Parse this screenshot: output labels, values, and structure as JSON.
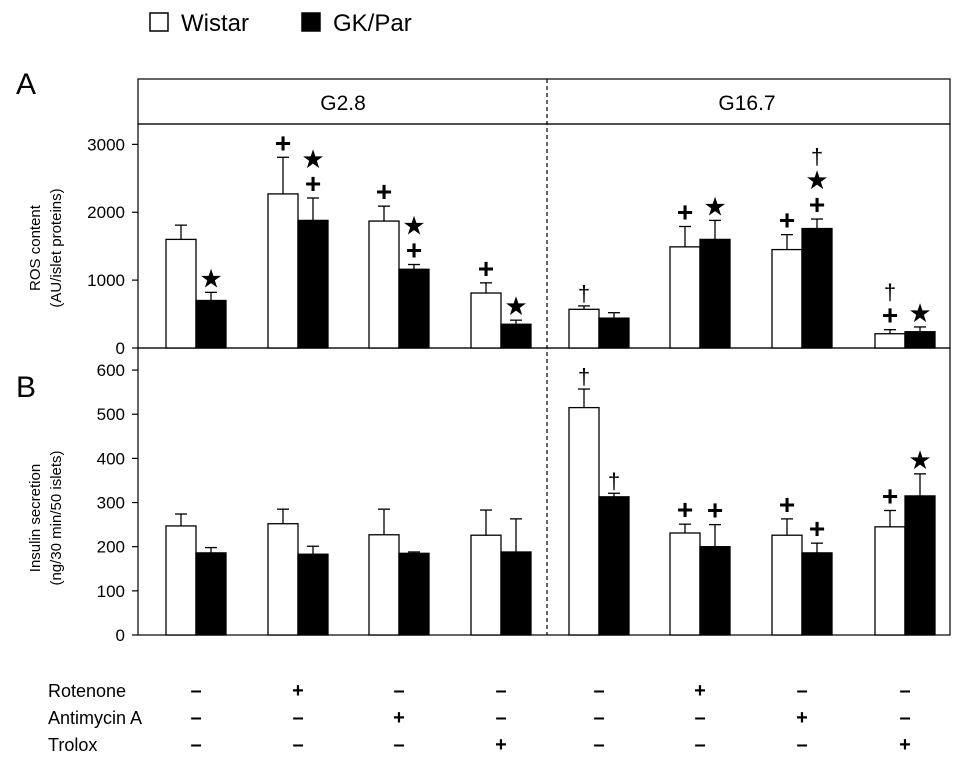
{
  "legend": [
    {
      "label": "Wistar",
      "fill": "#ffffff"
    },
    {
      "label": "GK/Par",
      "fill": "#000000"
    }
  ],
  "panel_letters": {
    "a": "A",
    "b": "B"
  },
  "condition_headers": [
    "G2.8",
    "G16.7"
  ],
  "treatments": [
    {
      "name": "Rotenone",
      "marks": [
        "–",
        "+",
        "–",
        "–",
        "–",
        "+",
        "–",
        "–"
      ]
    },
    {
      "name": "Antimycin A",
      "marks": [
        "–",
        "–",
        "+",
        "–",
        "–",
        "–",
        "+",
        "–"
      ]
    },
    {
      "name": "Trolox",
      "marks": [
        "–",
        "–",
        "–",
        "+",
        "–",
        "–",
        "–",
        "+"
      ]
    }
  ],
  "chart_data": [
    {
      "type": "bar",
      "panel": "A",
      "ylabel_lines": [
        "ROS content",
        "(AU/islet proteins)"
      ],
      "ylim": [
        0,
        3300
      ],
      "yticks": [
        0,
        1000,
        2000,
        3000
      ],
      "groups": 8,
      "series": [
        {
          "name": "Wistar",
          "values": [
            1600,
            2270,
            1870,
            810,
            570,
            1490,
            1450,
            210
          ],
          "errors": [
            210,
            540,
            220,
            150,
            50,
            300,
            220,
            60
          ]
        },
        {
          "name": "GK/Par",
          "values": [
            700,
            1880,
            1160,
            350,
            440,
            1600,
            1760,
            240
          ],
          "errors": [
            120,
            330,
            70,
            60,
            80,
            280,
            140,
            70
          ]
        }
      ],
      "annotations": {
        "Wistar": [
          [],
          [
            "+"
          ],
          [
            "+"
          ],
          [
            "+"
          ],
          [
            "†"
          ],
          [
            "+"
          ],
          [
            "+"
          ],
          [
            "+",
            "†"
          ]
        ],
        "GK/Par": [
          [
            "★"
          ],
          [
            "+",
            "★"
          ],
          [
            "+",
            "★"
          ],
          [
            "★"
          ],
          [],
          [
            "★"
          ],
          [
            "+",
            "★",
            "†"
          ],
          [
            "★"
          ]
        ]
      }
    },
    {
      "type": "bar",
      "panel": "B",
      "ylabel_lines": [
        "Insulin secretion",
        "(ng/30 min/50 islets)"
      ],
      "ylim": [
        0,
        650
      ],
      "yticks": [
        0,
        100,
        200,
        300,
        400,
        500,
        600
      ],
      "groups": 8,
      "series": [
        {
          "name": "Wistar",
          "values": [
            247,
            252,
            227,
            226,
            515,
            231,
            226,
            245
          ],
          "errors": [
            27,
            33,
            58,
            57,
            42,
            20,
            37,
            37
          ]
        },
        {
          "name": "GK/Par",
          "values": [
            186,
            183,
            185,
            188,
            313,
            200,
            186,
            315
          ],
          "errors": [
            12,
            18,
            3,
            75,
            8,
            50,
            22,
            50
          ]
        }
      ],
      "annotations": {
        "Wistar": [
          [],
          [],
          [],
          [],
          [
            "†"
          ],
          [
            "+"
          ],
          [
            "+"
          ],
          [
            "+"
          ]
        ],
        "GK/Par": [
          [],
          [],
          [],
          [],
          [
            "†"
          ],
          [
            "+"
          ],
          [
            "+"
          ],
          [
            "★"
          ]
        ]
      }
    }
  ]
}
